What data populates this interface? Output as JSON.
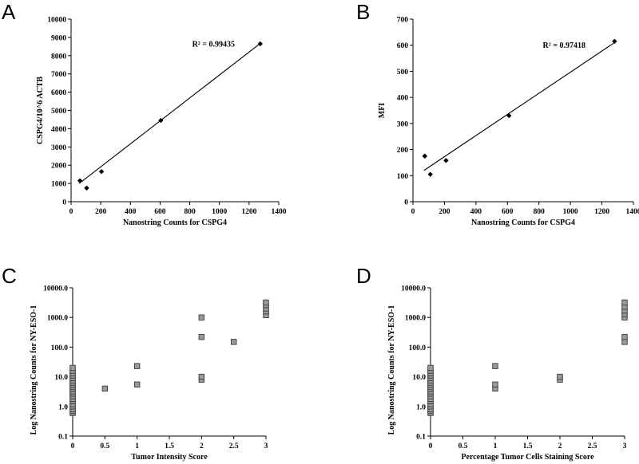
{
  "chart_data": [
    {
      "panel": "A",
      "type": "scatter",
      "title": "",
      "xlabel": "Nanostring Counts for CSPG4",
      "ylabel": "CSPG4/10^6 ACTB",
      "xlim": [
        0,
        1400
      ],
      "ylim": [
        0,
        10000
      ],
      "xticks": [
        0,
        200,
        400,
        600,
        800,
        1000,
        1200,
        1400
      ],
      "yticks": [
        0,
        1000,
        2000,
        3000,
        4000,
        5000,
        6000,
        7000,
        8000,
        9000,
        10000
      ],
      "xtick_labels": [
        "0",
        "200",
        "400",
        "600",
        "800",
        "1000",
        "1200",
        "1400"
      ],
      "ytick_labels": [
        "0",
        "1000",
        "2000",
        "3000",
        "4000",
        "5000",
        "6000",
        "7000",
        "8000",
        "9000",
        "10000"
      ],
      "x": [
        60,
        105,
        205,
        605,
        1275
      ],
      "y": [
        1150,
        750,
        1650,
        4450,
        8650
      ],
      "trendline": {
        "x": [
          55,
          1280
        ],
        "y": [
          1000,
          8700
        ]
      },
      "annotation": {
        "text": "R² = 0.99435",
        "x": 960,
        "y": 8500
      }
    },
    {
      "panel": "B",
      "type": "scatter",
      "title": "",
      "xlabel": "Nanostring Counts for CSPG4",
      "ylabel": "MFI",
      "xlim": [
        0,
        1400
      ],
      "ylim": [
        0,
        700
      ],
      "xticks": [
        0,
        200,
        400,
        600,
        800,
        1000,
        1200,
        1400
      ],
      "yticks": [
        0,
        100,
        200,
        300,
        400,
        500,
        600,
        700
      ],
      "xtick_labels": [
        "0",
        "200",
        "400",
        "600",
        "800",
        "1000",
        "1200",
        "1400"
      ],
      "ytick_labels": [
        "0",
        "100",
        "200",
        "300",
        "400",
        "500",
        "600",
        "700"
      ],
      "x": [
        75,
        110,
        210,
        610,
        1280
      ],
      "y": [
        175,
        105,
        158,
        330,
        615
      ],
      "trendline": {
        "x": [
          70,
          1280
        ],
        "y": [
          120,
          610
        ]
      },
      "annotation": {
        "text": "R² = 0.97418",
        "x": 960,
        "y": 590
      }
    },
    {
      "panel": "C",
      "type": "scatter",
      "yscale": "log",
      "title": "",
      "xlabel": "Tumor Intensity Score",
      "ylabel": "Log Nanostring Counts for NY-ESO-1",
      "xlim": [
        0,
        3
      ],
      "ylim": [
        0.1,
        10000
      ],
      "xticks": [
        0,
        0.5,
        1,
        1.5,
        2,
        2.5,
        3
      ],
      "yticks": [
        0.1,
        1,
        10,
        100,
        1000,
        10000
      ],
      "xtick_labels": [
        "0",
        "0.5",
        "1",
        "1.5",
        "2",
        "2.5",
        "3"
      ],
      "ytick_labels": [
        "0.1",
        "1.0",
        "10.0",
        "100.0",
        "1000.0",
        "10000.0"
      ],
      "x": [
        0,
        0,
        0,
        0,
        0,
        0,
        0,
        0,
        0,
        0,
        0,
        0,
        0,
        0,
        0,
        0,
        0,
        0,
        0,
        0,
        0.5,
        1,
        1,
        2,
        2,
        2,
        2,
        2.5,
        3,
        3,
        3,
        3,
        3
      ],
      "y": [
        0.6,
        0.7,
        0.8,
        1.0,
        1.2,
        1.5,
        1.8,
        2.2,
        2.7,
        3.2,
        3.8,
        4.5,
        5.3,
        6.3,
        7.5,
        9.0,
        11,
        13,
        16,
        20,
        4.0,
        5.5,
        23,
        8.0,
        10,
        220,
        1000,
        150,
        1200,
        1600,
        2000,
        2600,
        3200
      ]
    },
    {
      "panel": "D",
      "type": "scatter",
      "yscale": "log",
      "title": "",
      "xlabel": "Percentage Tumor Cells Staining Score",
      "ylabel": "Log Nanostring Counts for NY-ESO-1",
      "xlim": [
        0,
        3
      ],
      "ylim": [
        0.1,
        10000
      ],
      "xticks": [
        0,
        0.5,
        1,
        1.5,
        2,
        2.5,
        3
      ],
      "yticks": [
        0.1,
        1,
        10,
        100,
        1000,
        10000
      ],
      "xtick_labels": [
        "0",
        "0.5",
        "1",
        "1.5",
        "2",
        "2.5",
        "3"
      ],
      "ytick_labels": [
        "0.1",
        "1.0",
        "10.0",
        "100.0",
        "1000.0",
        "10000.0"
      ],
      "x": [
        0,
        0,
        0,
        0,
        0,
        0,
        0,
        0,
        0,
        0,
        0,
        0,
        0,
        0,
        0,
        0,
        0,
        0,
        0,
        0,
        1,
        1,
        1,
        2,
        2,
        3,
        3,
        3,
        3,
        3,
        3,
        3
      ],
      "y": [
        0.6,
        0.7,
        0.8,
        1.0,
        1.2,
        1.5,
        1.8,
        2.2,
        2.7,
        3.2,
        3.8,
        4.5,
        5.3,
        6.3,
        7.5,
        9.0,
        11,
        13,
        16,
        20,
        4.0,
        5.5,
        23,
        8.0,
        10,
        150,
        220,
        1000,
        1300,
        1700,
        2300,
        3200
      ]
    }
  ],
  "colors": {
    "axis": "#000000",
    "marker_dark": "#000000",
    "marker_square_fill": "#9a9a9a",
    "marker_square_stroke": "#3a3a3a",
    "trendline": "#000000"
  }
}
